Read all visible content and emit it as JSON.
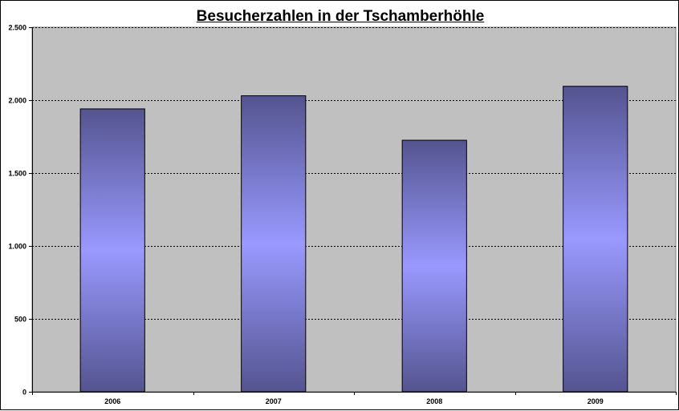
{
  "chart_data": {
    "type": "bar",
    "title": "Besucherzahlen in der Tschamberhöhle",
    "xlabel": "",
    "ylabel": "",
    "categories": [
      "2006",
      "2007",
      "2008",
      "2009"
    ],
    "values": [
      1940,
      2030,
      1725,
      2095
    ],
    "ylim": [
      0,
      2500
    ],
    "yticks": [
      0,
      500,
      1000,
      1500,
      2000,
      2500
    ],
    "ytick_labels": [
      "0",
      "500",
      "1.000",
      "1.500",
      "2.000",
      "2.500"
    ],
    "grid": "horizontal dashed",
    "legend": "none",
    "colors": {
      "plot_background": "#c0c0c0",
      "bar_edge": "#9999ff",
      "bar_center": "#9999ff",
      "bar_outer": "#545490",
      "grid": "#000000"
    }
  }
}
